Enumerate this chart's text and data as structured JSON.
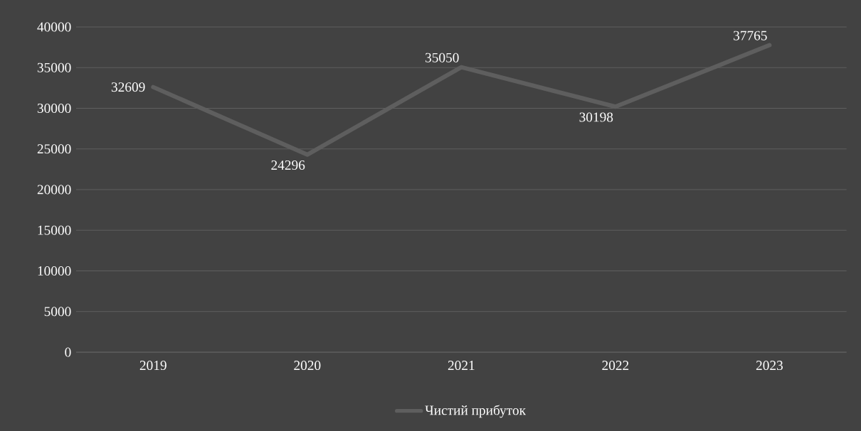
{
  "chart_data": {
    "type": "line",
    "categories": [
      "2019",
      "2020",
      "2021",
      "2022",
      "2023"
    ],
    "series": [
      {
        "name": "Чистий прибуток",
        "color": "#5e5e5e",
        "values": [
          32609,
          24296,
          35050,
          30198,
          37765
        ]
      }
    ],
    "ylim": [
      0,
      40000
    ],
    "yticks": [
      0,
      5000,
      10000,
      15000,
      20000,
      25000,
      30000,
      35000,
      40000
    ],
    "grid": "y",
    "legend": "bottom",
    "data_labels": true
  }
}
